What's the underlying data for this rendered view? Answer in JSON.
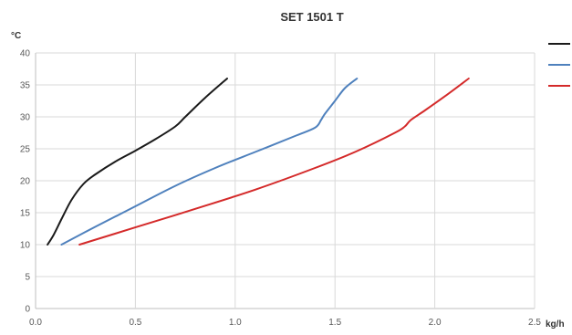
{
  "chart_data": {
    "type": "line",
    "title": "SET 1501 T",
    "ylabel": "°C",
    "xlabel": "kg/h",
    "xlim": [
      0,
      2.5
    ],
    "ylim": [
      0,
      40
    ],
    "xticks": [
      "0.0",
      "0.5",
      "1.0",
      "1.5",
      "2.0",
      "2.5"
    ],
    "yticks": [
      "0",
      "5",
      "10",
      "15",
      "20",
      "25",
      "30",
      "35",
      "40"
    ],
    "grid": true,
    "legend": "right",
    "series": [
      {
        "color": "#1a1a1a",
        "x": [
          0.06,
          0.09,
          0.13,
          0.18,
          0.24,
          0.3,
          0.4,
          0.5,
          0.6,
          0.7,
          0.75,
          0.85,
          0.96
        ],
        "y": [
          10,
          11.5,
          14,
          17,
          19.5,
          21,
          23,
          24.7,
          26.5,
          28.5,
          30,
          33,
          36
        ]
      },
      {
        "color": "#4f81bd",
        "x": [
          0.13,
          0.3,
          0.5,
          0.7,
          0.9,
          1.1,
          1.3,
          1.4,
          1.43,
          1.45,
          1.5,
          1.55,
          1.61
        ],
        "y": [
          10,
          12.8,
          16,
          19.2,
          22,
          24.5,
          27,
          28.3,
          29.5,
          30.5,
          32.5,
          34.5,
          36
        ]
      },
      {
        "color": "#d42a2a",
        "x": [
          0.22,
          0.5,
          0.8,
          1.1,
          1.4,
          1.6,
          1.8,
          1.85,
          1.88,
          1.95,
          2.05,
          2.17
        ],
        "y": [
          10,
          12.7,
          15.6,
          18.6,
          22,
          24.5,
          27.5,
          28.5,
          29.5,
          31,
          33.2,
          36
        ]
      }
    ]
  }
}
